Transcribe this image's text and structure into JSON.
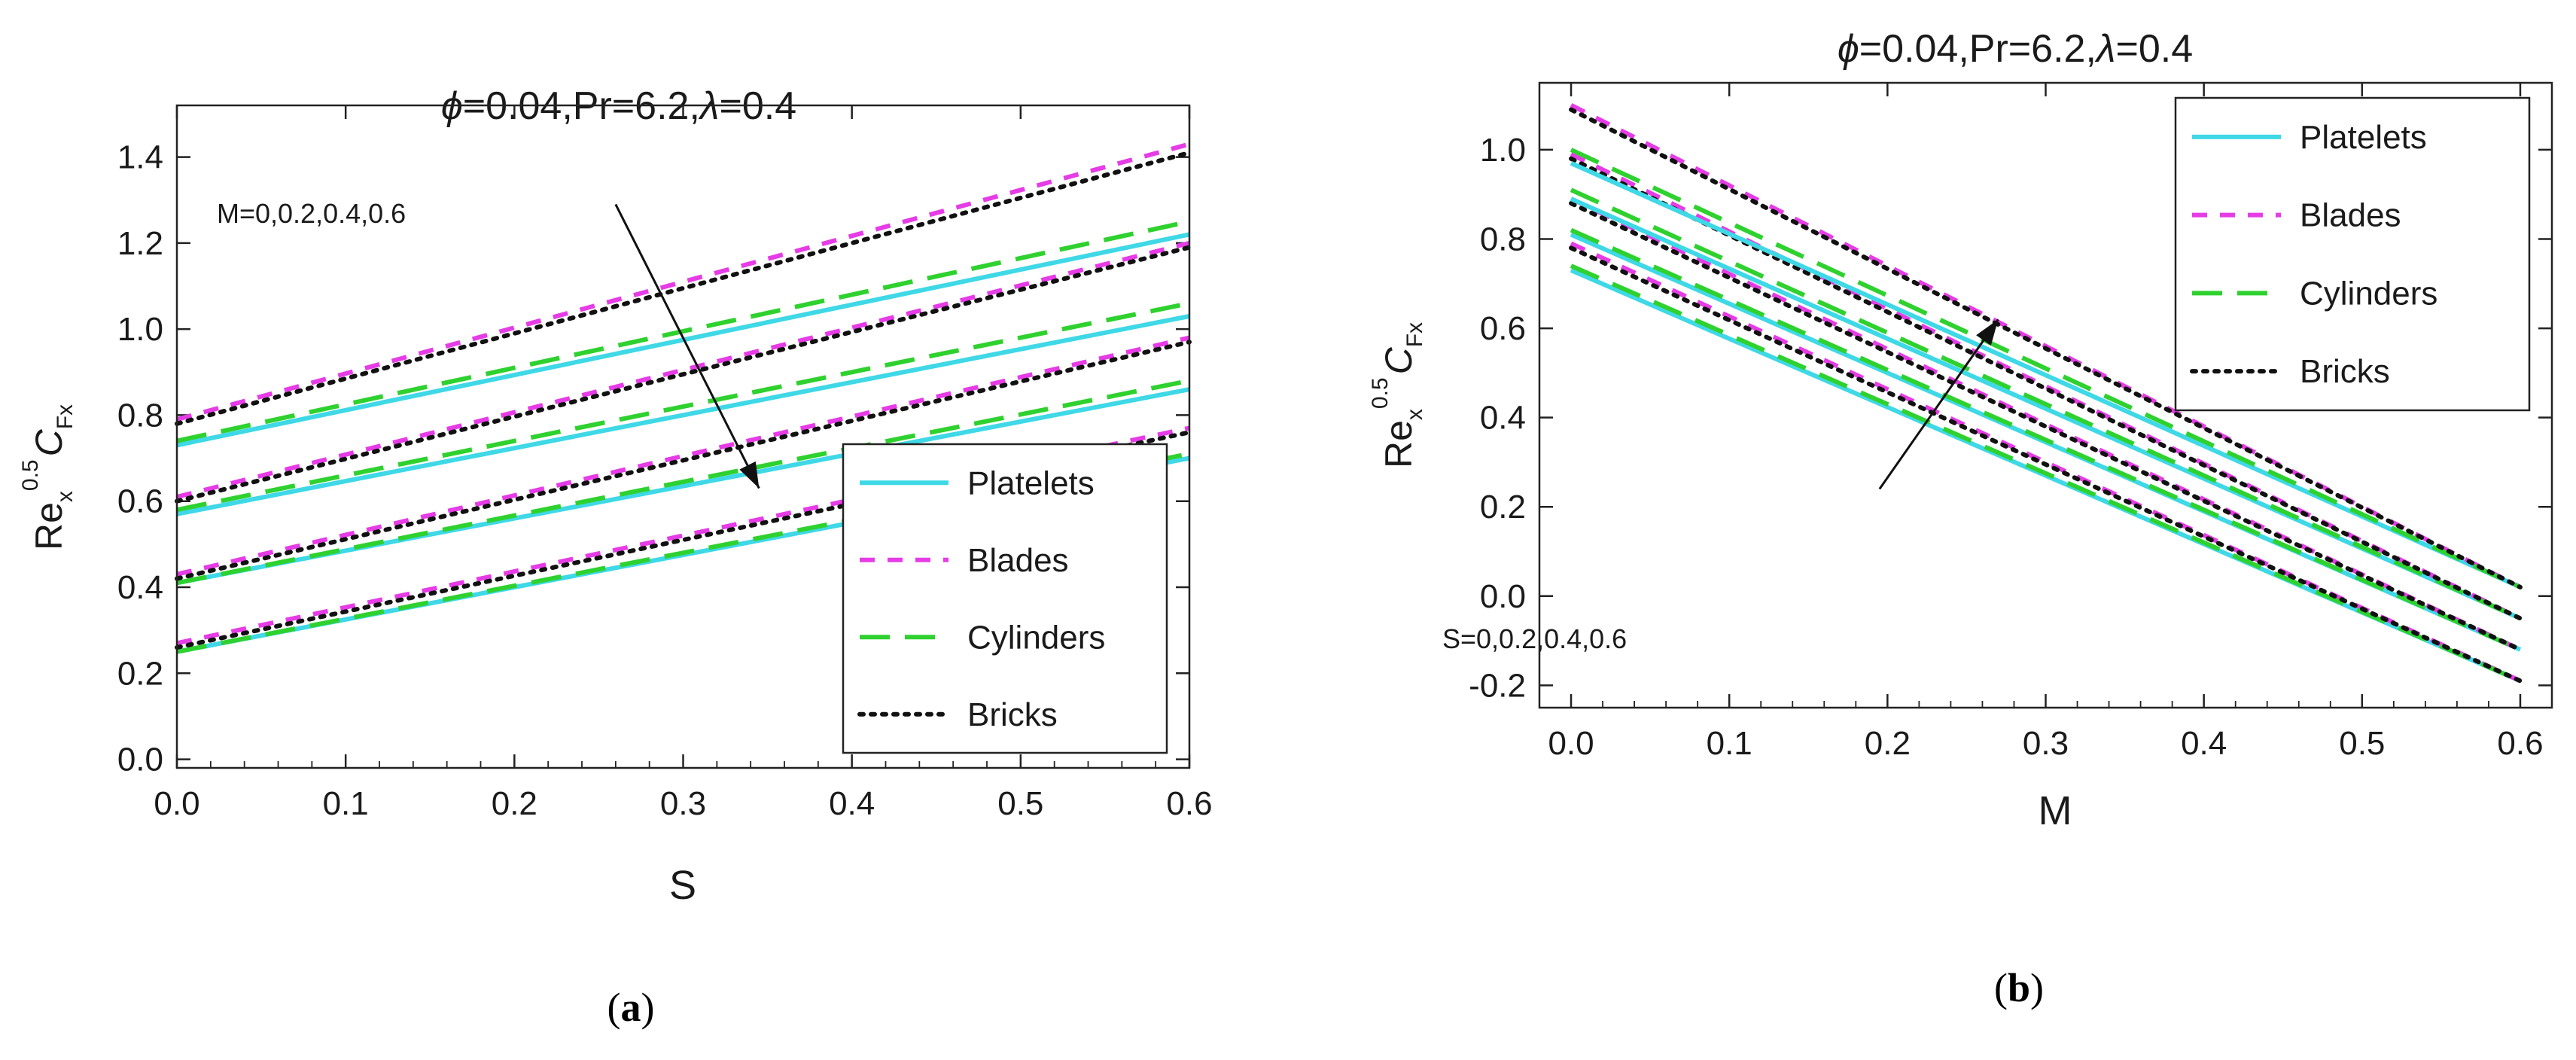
{
  "chart_data": [
    {
      "type": "line",
      "panel_label": "a",
      "title": {
        "phi": "ϕ",
        "main": "=0.04,Pr=6.2,",
        "lam": "λ",
        "tail": "=0.4"
      },
      "xlabel": "S",
      "ylabel": {
        "base": "Re",
        "sub": "x",
        "sup": "0.5",
        "c": "C",
        "csub": "Fx"
      },
      "xlim": [
        0,
        0.6
      ],
      "ylim": [
        -0.02,
        1.52
      ],
      "xticks": [
        "0.0",
        "0.1",
        "0.2",
        "0.3",
        "0.4",
        "0.5",
        "0.6"
      ],
      "yticks": [
        "0.0",
        "0.2",
        "0.4",
        "0.6",
        "0.8",
        "1.0",
        "1.2",
        "1.4"
      ],
      "annotation": "M=0,0.2,0.4,0.6",
      "arrow": {
        "from": [
          0.26,
          1.29
        ],
        "to": [
          0.345,
          0.63
        ]
      },
      "legend": [
        "Platelets",
        "Blades",
        "Cylinders",
        "Bricks"
      ],
      "x": [
        0,
        0.6
      ],
      "series": [
        {
          "name": "Platelets",
          "group": "M=0",
          "values": [
            0.73,
            1.22
          ]
        },
        {
          "name": "Blades",
          "group": "M=0",
          "values": [
            0.79,
            1.43
          ]
        },
        {
          "name": "Cylinders",
          "group": "M=0",
          "values": [
            0.74,
            1.25
          ]
        },
        {
          "name": "Bricks",
          "group": "M=0",
          "values": [
            0.78,
            1.41
          ]
        },
        {
          "name": "Platelets",
          "group": "M=0.2",
          "values": [
            0.57,
            1.03
          ]
        },
        {
          "name": "Blades",
          "group": "M=0.2",
          "values": [
            0.61,
            1.2
          ]
        },
        {
          "name": "Cylinders",
          "group": "M=0.2",
          "values": [
            0.58,
            1.06
          ]
        },
        {
          "name": "Bricks",
          "group": "M=0.2",
          "values": [
            0.6,
            1.19
          ]
        },
        {
          "name": "Platelets",
          "group": "M=0.4",
          "values": [
            0.41,
            0.86
          ]
        },
        {
          "name": "Blades",
          "group": "M=0.4",
          "values": [
            0.43,
            0.98
          ]
        },
        {
          "name": "Cylinders",
          "group": "M=0.4",
          "values": [
            0.41,
            0.88
          ]
        },
        {
          "name": "Bricks",
          "group": "M=0.4",
          "values": [
            0.42,
            0.97
          ]
        },
        {
          "name": "Platelets",
          "group": "M=0.6",
          "values": [
            0.25,
            0.7
          ]
        },
        {
          "name": "Blades",
          "group": "M=0.6",
          "values": [
            0.27,
            0.77
          ]
        },
        {
          "name": "Cylinders",
          "group": "M=0.6",
          "values": [
            0.25,
            0.71
          ]
        },
        {
          "name": "Bricks",
          "group": "M=0.6",
          "values": [
            0.26,
            0.76
          ]
        }
      ]
    },
    {
      "type": "line",
      "panel_label": "b",
      "title": {
        "phi": "ϕ",
        "main": "=0.04,Pr=6.2,",
        "lam": "λ",
        "tail": "=0.4"
      },
      "xlabel": "M",
      "ylabel": {
        "base": "Re",
        "sub": "x",
        "sup": "0.5",
        "c": "C",
        "csub": "Fx"
      },
      "xlim": [
        -0.02,
        0.62
      ],
      "ylim": [
        -0.25,
        1.15
      ],
      "xticks": [
        "0.0",
        "0.1",
        "0.2",
        "0.3",
        "0.4",
        "0.5",
        "0.6"
      ],
      "yticks": [
        "-0.2",
        "0.0",
        "0.2",
        "0.4",
        "0.6",
        "0.8",
        "1.0"
      ],
      "annotation": "S=0,0.2,0.4,0.6",
      "arrow": {
        "from": [
          0.195,
          0.24
        ],
        "to": [
          0.27,
          0.62
        ]
      },
      "legend": [
        "Platelets",
        "Blades",
        "Cylinders",
        "Bricks"
      ],
      "x": [
        0,
        0.6
      ],
      "series": [
        {
          "name": "Platelets",
          "group": "S=0",
          "values": [
            0.73,
            -0.19
          ]
        },
        {
          "name": "Blades",
          "group": "S=0",
          "values": [
            0.79,
            -0.19
          ]
        },
        {
          "name": "Cylinders",
          "group": "S=0",
          "values": [
            0.74,
            -0.19
          ]
        },
        {
          "name": "Bricks",
          "group": "S=0",
          "values": [
            0.78,
            -0.19
          ]
        },
        {
          "name": "Platelets",
          "group": "S=0.2",
          "values": [
            0.81,
            -0.12
          ]
        },
        {
          "name": "Blades",
          "group": "S=0.2",
          "values": [
            0.89,
            -0.12
          ]
        },
        {
          "name": "Cylinders",
          "group": "S=0.2",
          "values": [
            0.82,
            -0.12
          ]
        },
        {
          "name": "Bricks",
          "group": "S=0.2",
          "values": [
            0.88,
            -0.12
          ]
        },
        {
          "name": "Platelets",
          "group": "S=0.4",
          "values": [
            0.89,
            -0.05
          ]
        },
        {
          "name": "Blades",
          "group": "S=0.4",
          "values": [
            0.99,
            -0.05
          ]
        },
        {
          "name": "Cylinders",
          "group": "S=0.4",
          "values": [
            0.91,
            -0.05
          ]
        },
        {
          "name": "Bricks",
          "group": "S=0.4",
          "values": [
            0.98,
            -0.05
          ]
        },
        {
          "name": "Platelets",
          "group": "S=0.6",
          "values": [
            0.97,
            0.02
          ]
        },
        {
          "name": "Blades",
          "group": "S=0.6",
          "values": [
            1.1,
            0.02
          ]
        },
        {
          "name": "Cylinders",
          "group": "S=0.6",
          "values": [
            1.0,
            0.02
          ]
        },
        {
          "name": "Bricks",
          "group": "S=0.6",
          "values": [
            1.09,
            0.02
          ]
        }
      ]
    }
  ],
  "styles": {
    "Platelets": {
      "color": "#3fd8e6",
      "dash": ""
    },
    "Blades": {
      "color": "#e63ce6",
      "dash": "20,17"
    },
    "Cylinders": {
      "color": "#2fd12f",
      "dash": "40,20"
    },
    "Bricks": {
      "color": "#111111",
      "dash": "5,10"
    }
  },
  "captions": [
    "a",
    "b"
  ]
}
